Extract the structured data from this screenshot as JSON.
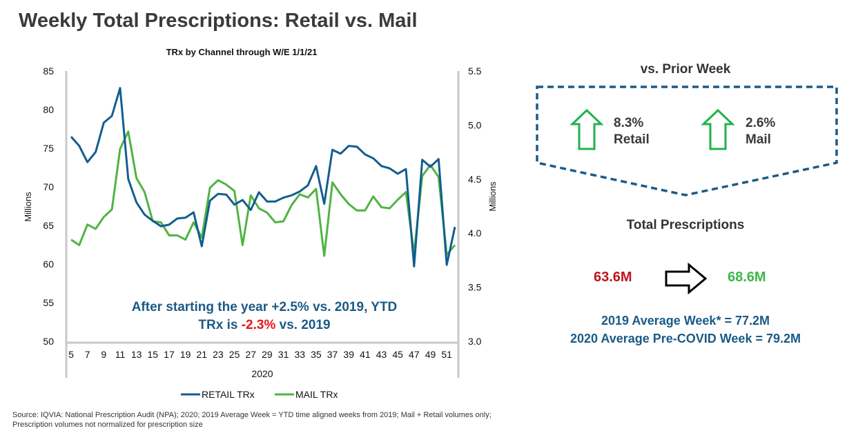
{
  "title": "Weekly Total Prescriptions: Retail vs. Mail",
  "chart_data": {
    "type": "line",
    "title": "TRx by Channel through W/E 1/1/21",
    "xlabel": "2020",
    "ylabel": "Millions",
    "y2label": "Millions",
    "ylim": [
      50,
      85
    ],
    "y2lim": [
      3.0,
      5.5
    ],
    "yticks": [
      "85",
      "80",
      "75",
      "70",
      "65",
      "60",
      "55",
      "50"
    ],
    "y2ticks": [
      "5.5",
      "5.0",
      "4.5",
      "4.0",
      "3.5",
      "3.0"
    ],
    "x": [
      5,
      6,
      7,
      8,
      9,
      10,
      11,
      12,
      13,
      14,
      15,
      16,
      17,
      18,
      19,
      20,
      21,
      22,
      23,
      24,
      25,
      26,
      27,
      28,
      29,
      30,
      31,
      32,
      33,
      34,
      35,
      36,
      37,
      38,
      39,
      40,
      41,
      42,
      43,
      44,
      45,
      46,
      47,
      48,
      49,
      50,
      51,
      52
    ],
    "xticks": [
      "5",
      "7",
      "9",
      "11",
      "13",
      "15",
      "17",
      "19",
      "21",
      "23",
      "25",
      "27",
      "29",
      "31",
      "33",
      "35",
      "37",
      "39",
      "41",
      "43",
      "45",
      "47",
      "49",
      "51"
    ],
    "series": [
      {
        "name": "RETAIL TRx",
        "axis": "left",
        "color": "#135d8f",
        "values": [
          76.5,
          75.3,
          73.2,
          74.5,
          78.3,
          79.2,
          82.8,
          71.0,
          68.0,
          66.4,
          65.6,
          64.9,
          65.1,
          65.9,
          66.0,
          66.7,
          62.3,
          68.2,
          69.1,
          69.0,
          67.7,
          68.3,
          67.0,
          69.3,
          68.1,
          68.1,
          68.6,
          68.9,
          69.4,
          70.2,
          72.7,
          67.8,
          74.8,
          74.3,
          75.3,
          75.2,
          74.2,
          73.7,
          72.7,
          72.4,
          71.7,
          72.3,
          59.7,
          73.5,
          72.6,
          73.6,
          59.9,
          64.8
        ]
      },
      {
        "name": "MAIL TRx",
        "axis": "right",
        "color": "#4fb443",
        "values": [
          3.94,
          3.89,
          4.08,
          4.04,
          4.15,
          4.22,
          4.78,
          4.94,
          4.51,
          4.38,
          4.11,
          4.1,
          3.98,
          3.98,
          3.94,
          4.1,
          3.96,
          4.42,
          4.49,
          4.45,
          4.39,
          3.89,
          4.35,
          4.23,
          4.19,
          4.1,
          4.11,
          4.26,
          4.36,
          4.33,
          4.41,
          3.79,
          4.47,
          4.36,
          4.27,
          4.21,
          4.21,
          4.34,
          4.24,
          4.23,
          4.31,
          4.38,
          3.81,
          4.53,
          4.63,
          4.52,
          3.8,
          3.89
        ]
      }
    ],
    "legend": "bottom",
    "annotation": {
      "line1": "After starting the year +2.5% vs. 2019, YTD",
      "line2_a": "TRx is ",
      "line2_red": "-2.3%",
      "line2_b": " vs. 2019"
    }
  },
  "right_panel": {
    "prior_week_title": "vs. Prior Week",
    "retail_pct": "8.3%",
    "retail_label": "Retail",
    "mail_pct": "2.6%",
    "mail_label": "Mail",
    "total_title": "Total Prescriptions",
    "from_value": "63.6M",
    "to_value": "68.6M",
    "avg_2019": "2019 Average Week* = 77.2M",
    "avg_2020": "2020 Average Pre-COVID Week = 79.2M"
  },
  "footer": {
    "line1": "Source: IQVIA: National Prescription Audit (NPA); 2020; 2019 Average Week = YTD time aligned weeks from 2019; Mail + Retail volumes only;",
    "line2": "Prescription volumes not normalized for prescription size"
  }
}
